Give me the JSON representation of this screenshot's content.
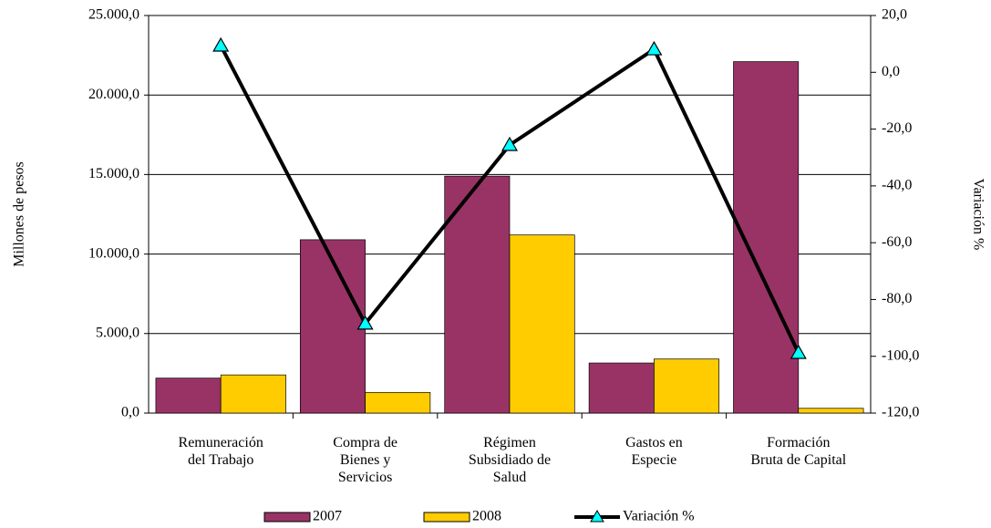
{
  "chart_data": {
    "type": "bar",
    "categories": [
      "Remuneración\ndel Trabajo",
      "Compra de\nBienes y\nServicios",
      "Régimen\nSubsidiado de\nSalud",
      "Gastos en\nEspecie",
      "Formación\nBruta de Capital"
    ],
    "series": [
      {
        "name": "2007",
        "color": "#993366",
        "values": [
          2200,
          10900,
          14900,
          3150,
          22100
        ]
      },
      {
        "name": "2008",
        "color": "#ffcc00",
        "values": [
          2400,
          1300,
          11200,
          3400,
          300
        ]
      },
      {
        "name": "Variación %",
        "color": "#000000",
        "marker_color": "#00ffff",
        "type": "line",
        "axis": "y2",
        "values": [
          9.4,
          -88.5,
          -25.6,
          8.1,
          -98.8
        ]
      }
    ],
    "y_label": "Millones de pesos",
    "y2_label": "Variación %",
    "ylim": [
      0,
      25000
    ],
    "yticks": [
      {
        "value": 0,
        "label": "0,0"
      },
      {
        "value": 5000,
        "label": "5.000,0"
      },
      {
        "value": 10000,
        "label": "10.000,0"
      },
      {
        "value": 15000,
        "label": "15.000,0"
      },
      {
        "value": 20000,
        "label": "20.000,0"
      },
      {
        "value": 25000,
        "label": "25.000,0"
      }
    ],
    "y2lim": [
      -120,
      20
    ],
    "y2ticks": [
      {
        "value": -120,
        "label": "-120,0"
      },
      {
        "value": -100,
        "label": "-100,0"
      },
      {
        "value": -80,
        "label": "-80,0"
      },
      {
        "value": -60,
        "label": "-60,0"
      },
      {
        "value": -40,
        "label": "-40,0"
      },
      {
        "value": -20,
        "label": "-20,0"
      },
      {
        "value": 0,
        "label": "0,0"
      },
      {
        "value": 20,
        "label": "20,0"
      }
    ],
    "grid": true,
    "legend": "bottom"
  }
}
